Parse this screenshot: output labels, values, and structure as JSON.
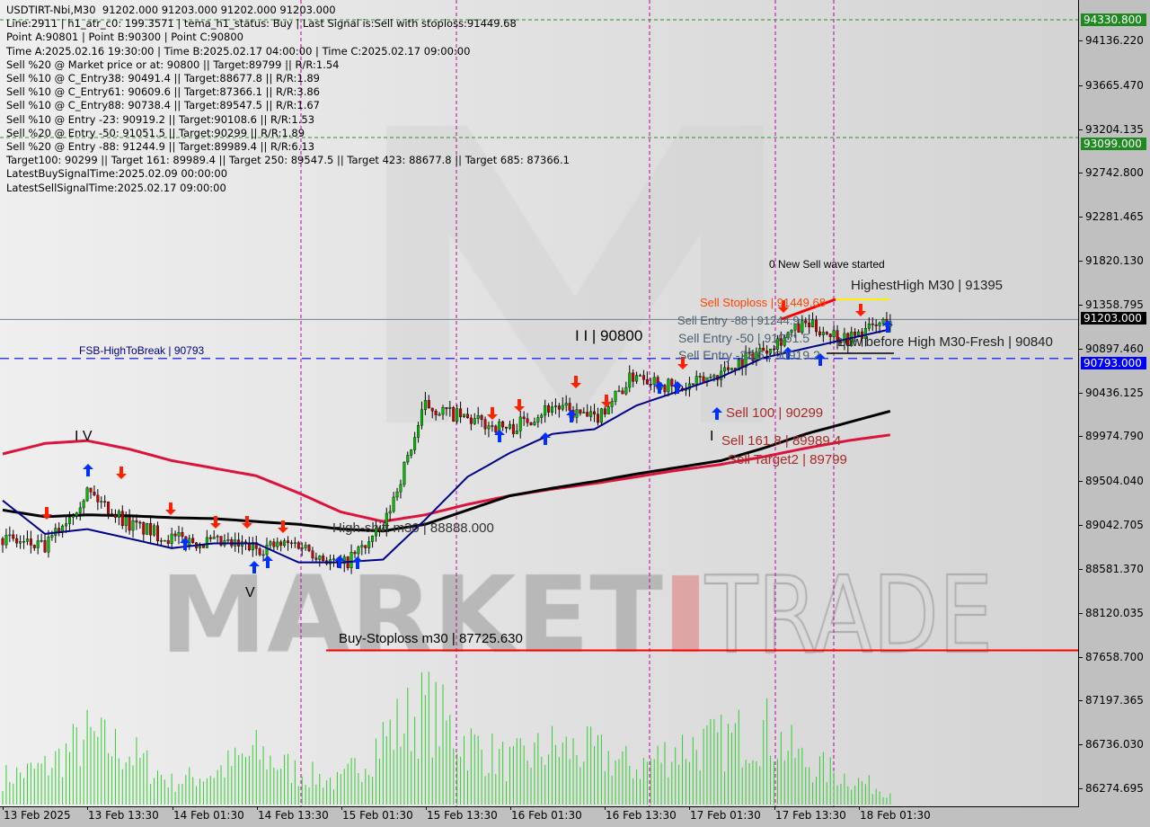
{
  "header": {
    "symbol_line": "USDTIRT-Nbi,M30  91202.000 91203.000 91202.000 91203.000",
    "lines": [
      "Line:2911 | h1_atr_c0: 199.3571 | tema_h1_status: Buy | Last Signal is:Sell with stoploss:91449.68",
      "Point A:90801 | Point B:90300 | Point C:90800",
      "Time A:2025.02.16 19:30:00 | Time B:2025.02.17 04:00:00 | Time C:2025.02.17 09:00:00",
      "Sell %20 @ Market price or at: 90800 || Target:89799 || R/R:1.54",
      "Sell %10 @ C_Entry38: 90491.4 || Target:88677.8 || R/R:1.89",
      "Sell %10 @ C_Entry61: 90609.6 || Target:87366.1 || R/R:3.86",
      "Sell %10 @ C_Entry88: 90738.4 || Target:89547.5 || R/R:1.67",
      "Sell %10 @ Entry -23: 90919.2 || Target:90108.6 || R/R:1.53",
      "Sell %20 @ Entry -50: 91051.5 || Target:90299 || R/R:1.89",
      "Sell %20 @ Entry -88: 91244.9 || Target:89989.4 || R/R:6.13",
      "Target100: 90299 || Target 161: 89989.4 || Target 250: 89547.5 || Target 423: 88677.8 || Target 685: 87366.1",
      "LatestBuySignalTime:2025.02.09 00:00:00",
      "LatestSellSignalTime:2025.02.17 09:00:00"
    ]
  },
  "annotations": {
    "new_wave": "0 New Sell wave started",
    "highest_high": "HighestHigh   M30 | 91395",
    "sell_stoploss": "Sell Stoploss | 91449.68",
    "sell_entry_88": "Sell Entry -88 | 91244.9",
    "sell_entry_50": "Sell Entry -50 | 91051.5",
    "ii_label": "I I | 90800",
    "sell_entry_23": "Sell Entry -23.6 | 90919.2",
    "low_before_high": "Low before High   M30-Fresh | 90840",
    "fsb": "FSB-HighToBreak | 90793",
    "sell_100": "Sell 100 | 90299",
    "sell_161": "Sell 161.8 | 89989.4",
    "sell_target2": "Sell Target2 | 89799",
    "high_shift": "High-shift m30 | 88888.000",
    "buy_stoploss": "Buy-Stoploss m30 | 87725.630",
    "wave_iv": "I V",
    "wave_v": "V",
    "wave_i": "I",
    "watermark": "MARKETZ TRADE"
  },
  "price_tags": [
    {
      "value": "94330.800",
      "bg": "#1f8a1f"
    },
    {
      "value": "93099.000",
      "bg": "#1f8a1f"
    },
    {
      "value": "91203.000",
      "bg": "#000000"
    },
    {
      "value": "90793.000",
      "bg": "#0000ff"
    }
  ],
  "colors": {
    "bull": "#00c000",
    "bear": "#d00000",
    "ma_red": "#dc143c",
    "ma_black": "#000000",
    "ma_blue": "#00008b",
    "volume": "#32cd32",
    "vline": "#c000a0",
    "stoploss_line": "#ff0000",
    "fsb_line": "#0000ff"
  },
  "chart_data": {
    "type": "candlestick",
    "symbol": "USDTIRT-Nbi",
    "timeframe": "M30",
    "ylim": [
      86274.695,
      94136.22
    ],
    "y_ticks": [
      "94136.220",
      "93665.470",
      "93204.135",
      "92742.800",
      "92281.465",
      "91820.130",
      "91358.795",
      "90897.460",
      "90436.125",
      "89974.790",
      "89504.040",
      "89042.705",
      "88581.370",
      "88120.035",
      "87658.700",
      "87197.365",
      "86736.030",
      "86274.695"
    ],
    "x_ticks": [
      "13 Feb 2025",
      "13 Feb 13:30",
      "14 Feb 01:30",
      "14 Feb 13:30",
      "15 Feb 01:30",
      "15 Feb 13:30",
      "16 Feb 01:30",
      "16 Feb 13:30",
      "17 Feb 01:30",
      "17 Feb 13:30",
      "18 Feb 01:30"
    ],
    "sample_times": [
      "13 Feb 01:30",
      "13 Feb 07:30",
      "13 Feb 13:30",
      "13 Feb 19:30",
      "14 Feb 01:30",
      "14 Feb 07:30",
      "14 Feb 13:30",
      "14 Feb 19:30",
      "15 Feb 01:30",
      "15 Feb 07:30",
      "15 Feb 13:30",
      "15 Feb 19:30",
      "16 Feb 01:30",
      "16 Feb 07:30",
      "16 Feb 13:30",
      "16 Feb 19:30",
      "17 Feb 01:30",
      "17 Feb 07:30",
      "17 Feb 13:30",
      "17 Feb 19:30",
      "18 Feb 01:30",
      "18 Feb 07:30"
    ],
    "close": [
      88900,
      88800,
      89400,
      89050,
      88900,
      88850,
      88800,
      88850,
      88600,
      89000,
      90300,
      90150,
      90050,
      90300,
      90150,
      90650,
      90450,
      90650,
      90900,
      91150,
      91000,
      91203
    ],
    "ma_red": [
      89790,
      89900,
      89930,
      89840,
      89720,
      89640,
      89560,
      89380,
      89180,
      89080,
      89150,
      89260,
      89350,
      89420,
      89480,
      89550,
      89620,
      89680,
      89760,
      89850,
      89930,
      89990
    ],
    "ma_black": [
      89200,
      89130,
      89150,
      89140,
      89120,
      89110,
      89080,
      89050,
      89000,
      88980,
      89050,
      89200,
      89350,
      89430,
      89500,
      89580,
      89650,
      89720,
      89850,
      90000,
      90120,
      90240
    ],
    "ma_blue": [
      89300,
      88950,
      89000,
      88900,
      88800,
      88850,
      88850,
      88650,
      88650,
      88680,
      89100,
      89550,
      89800,
      90000,
      90050,
      90300,
      90450,
      90600,
      90800,
      90900,
      91000,
      91100
    ],
    "volume_level": [
      0.2,
      0.3,
      0.6,
      0.45,
      0.15,
      0.25,
      0.45,
      0.25,
      0.15,
      0.6,
      0.9,
      0.55,
      0.35,
      0.5,
      0.45,
      0.3,
      0.5,
      0.55,
      0.7,
      0.35,
      0.2,
      0.05
    ],
    "levels": {
      "bid": 91203,
      "fsb_high_to_break": 90793,
      "buy_stoploss": 87725.63,
      "upper_green": 94330.8,
      "lower_green": 93099
    }
  }
}
